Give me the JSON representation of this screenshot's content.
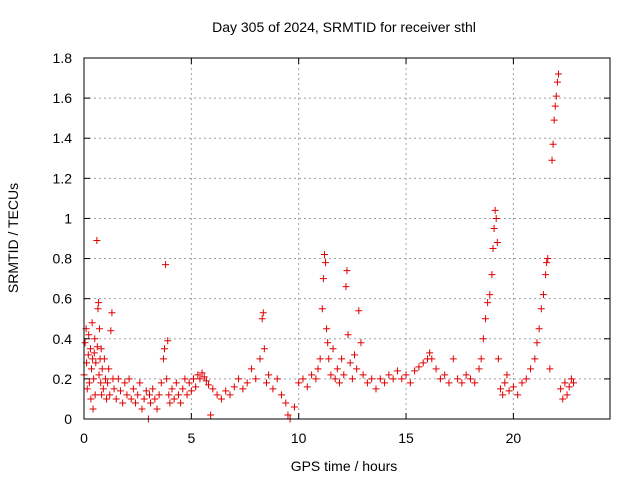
{
  "chart_data": {
    "type": "scatter",
    "title": "Day 305 of 2024, SRMTID for receiver sthl",
    "xlabel": "GPS time / hours",
    "ylabel": "SRMTID / TECUs",
    "xlim": [
      0,
      24.5
    ],
    "ylim": [
      0,
      1.8
    ],
    "x_ticks": [
      0,
      5,
      10,
      15,
      20
    ],
    "x_tick_labels": [
      "0",
      "5",
      "10",
      "15",
      "20"
    ],
    "y_ticks": [
      0,
      0.2,
      0.4,
      0.6,
      0.8,
      1.0,
      1.2,
      1.4,
      1.6,
      1.8
    ],
    "y_tick_labels": [
      "0",
      "0.2",
      "0.4",
      "0.6",
      "0.8",
      "1",
      "1.2",
      "1.4",
      "1.6",
      "1.8"
    ],
    "grid": true,
    "marker": "plus",
    "marker_color": "#e00000",
    "series": [
      {
        "name": "SRMTID",
        "points": [
          [
            0.0,
            0.22
          ],
          [
            0.05,
            0.38
          ],
          [
            0.1,
            0.45
          ],
          [
            0.12,
            0.28
          ],
          [
            0.15,
            0.15
          ],
          [
            0.2,
            0.32
          ],
          [
            0.22,
            0.42
          ],
          [
            0.25,
            0.18
          ],
          [
            0.3,
            0.35
          ],
          [
            0.32,
            0.1
          ],
          [
            0.35,
            0.25
          ],
          [
            0.38,
            0.48
          ],
          [
            0.4,
            0.3
          ],
          [
            0.42,
            0.05
          ],
          [
            0.45,
            0.2
          ],
          [
            0.48,
            0.33
          ],
          [
            0.5,
            0.4
          ],
          [
            0.52,
            0.12
          ],
          [
            0.55,
            0.28
          ],
          [
            0.6,
            0.89
          ],
          [
            0.62,
            0.36
          ],
          [
            0.65,
            0.55
          ],
          [
            0.68,
            0.58
          ],
          [
            0.7,
            0.22
          ],
          [
            0.72,
            0.45
          ],
          [
            0.75,
            0.3
          ],
          [
            0.78,
            0.18
          ],
          [
            0.8,
            0.35
          ],
          [
            0.82,
            0.12
          ],
          [
            0.85,
            0.25
          ],
          [
            0.9,
            0.15
          ],
          [
            0.95,
            0.3
          ],
          [
            1.0,
            0.2
          ],
          [
            1.05,
            0.1
          ],
          [
            1.1,
            0.18
          ],
          [
            1.15,
            0.25
          ],
          [
            1.2,
            0.12
          ],
          [
            1.25,
            0.44
          ],
          [
            1.3,
            0.53
          ],
          [
            1.35,
            0.2
          ],
          [
            1.4,
            0.15
          ],
          [
            1.5,
            0.1
          ],
          [
            1.6,
            0.2
          ],
          [
            1.7,
            0.14
          ],
          [
            1.8,
            0.08
          ],
          [
            1.9,
            0.18
          ],
          [
            2.0,
            0.12
          ],
          [
            2.1,
            0.2
          ],
          [
            2.2,
            0.1
          ],
          [
            2.3,
            0.15
          ],
          [
            2.4,
            0.08
          ],
          [
            2.5,
            0.12
          ],
          [
            2.6,
            0.18
          ],
          [
            2.7,
            0.05
          ],
          [
            2.8,
            0.1
          ],
          [
            2.9,
            0.14
          ],
          [
            3.0,
            0.0
          ],
          [
            3.05,
            0.12
          ],
          [
            3.1,
            0.08
          ],
          [
            3.2,
            0.15
          ],
          [
            3.3,
            0.1
          ],
          [
            3.4,
            0.05
          ],
          [
            3.5,
            0.12
          ],
          [
            3.6,
            0.18
          ],
          [
            3.7,
            0.3
          ],
          [
            3.75,
            0.35
          ],
          [
            3.8,
            0.77
          ],
          [
            3.85,
            0.2
          ],
          [
            3.9,
            0.39
          ],
          [
            3.95,
            0.12
          ],
          [
            4.0,
            0.08
          ],
          [
            4.1,
            0.15
          ],
          [
            4.2,
            0.1
          ],
          [
            4.3,
            0.18
          ],
          [
            4.4,
            0.12
          ],
          [
            4.5,
            0.08
          ],
          [
            4.6,
            0.15
          ],
          [
            4.7,
            0.2
          ],
          [
            4.8,
            0.12
          ],
          [
            4.9,
            0.18
          ],
          [
            5.0,
            0.14
          ],
          [
            5.1,
            0.2
          ],
          [
            5.2,
            0.16
          ],
          [
            5.3,
            0.22
          ],
          [
            5.4,
            0.2
          ],
          [
            5.5,
            0.23
          ],
          [
            5.6,
            0.21
          ],
          [
            5.7,
            0.19
          ],
          [
            5.8,
            0.17
          ],
          [
            5.9,
            0.02
          ],
          [
            6.0,
            0.15
          ],
          [
            6.2,
            0.12
          ],
          [
            6.4,
            0.1
          ],
          [
            6.6,
            0.14
          ],
          [
            6.8,
            0.12
          ],
          [
            7.0,
            0.16
          ],
          [
            7.2,
            0.2
          ],
          [
            7.4,
            0.15
          ],
          [
            7.6,
            0.18
          ],
          [
            7.8,
            0.25
          ],
          [
            8.0,
            0.2
          ],
          [
            8.2,
            0.3
          ],
          [
            8.3,
            0.5
          ],
          [
            8.35,
            0.53
          ],
          [
            8.4,
            0.35
          ],
          [
            8.5,
            0.18
          ],
          [
            8.6,
            0.22
          ],
          [
            8.8,
            0.15
          ],
          [
            9.0,
            0.2
          ],
          [
            9.2,
            0.12
          ],
          [
            9.4,
            0.08
          ],
          [
            9.5,
            0.02
          ],
          [
            9.6,
            0.0
          ],
          [
            9.8,
            0.06
          ],
          [
            10.0,
            0.18
          ],
          [
            10.2,
            0.2
          ],
          [
            10.4,
            0.16
          ],
          [
            10.6,
            0.22
          ],
          [
            10.8,
            0.2
          ],
          [
            10.9,
            0.25
          ],
          [
            11.0,
            0.3
          ],
          [
            11.1,
            0.55
          ],
          [
            11.15,
            0.7
          ],
          [
            11.2,
            0.82
          ],
          [
            11.25,
            0.78
          ],
          [
            11.3,
            0.45
          ],
          [
            11.35,
            0.38
          ],
          [
            11.4,
            0.3
          ],
          [
            11.5,
            0.22
          ],
          [
            11.6,
            0.35
          ],
          [
            11.7,
            0.2
          ],
          [
            11.8,
            0.25
          ],
          [
            11.9,
            0.18
          ],
          [
            12.0,
            0.3
          ],
          [
            12.1,
            0.22
          ],
          [
            12.2,
            0.66
          ],
          [
            12.25,
            0.74
          ],
          [
            12.3,
            0.42
          ],
          [
            12.4,
            0.28
          ],
          [
            12.5,
            0.2
          ],
          [
            12.6,
            0.32
          ],
          [
            12.7,
            0.25
          ],
          [
            12.8,
            0.54
          ],
          [
            12.9,
            0.38
          ],
          [
            13.0,
            0.22
          ],
          [
            13.2,
            0.18
          ],
          [
            13.4,
            0.2
          ],
          [
            13.6,
            0.15
          ],
          [
            13.8,
            0.2
          ],
          [
            14.0,
            0.18
          ],
          [
            14.2,
            0.22
          ],
          [
            14.4,
            0.2
          ],
          [
            14.6,
            0.24
          ],
          [
            14.8,
            0.2
          ],
          [
            15.0,
            0.22
          ],
          [
            15.2,
            0.18
          ],
          [
            15.4,
            0.24
          ],
          [
            15.6,
            0.26
          ],
          [
            15.8,
            0.28
          ],
          [
            16.0,
            0.3
          ],
          [
            16.1,
            0.33
          ],
          [
            16.2,
            0.3
          ],
          [
            16.4,
            0.25
          ],
          [
            16.6,
            0.2
          ],
          [
            16.8,
            0.22
          ],
          [
            17.0,
            0.18
          ],
          [
            17.2,
            0.3
          ],
          [
            17.4,
            0.2
          ],
          [
            17.6,
            0.18
          ],
          [
            17.8,
            0.22
          ],
          [
            18.0,
            0.2
          ],
          [
            18.2,
            0.18
          ],
          [
            18.4,
            0.25
          ],
          [
            18.5,
            0.3
          ],
          [
            18.6,
            0.4
          ],
          [
            18.7,
            0.5
          ],
          [
            18.8,
            0.58
          ],
          [
            18.9,
            0.62
          ],
          [
            19.0,
            0.72
          ],
          [
            19.05,
            0.85
          ],
          [
            19.1,
            0.95
          ],
          [
            19.15,
            1.04
          ],
          [
            19.2,
            1.0
          ],
          [
            19.25,
            0.88
          ],
          [
            19.3,
            0.3
          ],
          [
            19.4,
            0.15
          ],
          [
            19.5,
            0.12
          ],
          [
            19.6,
            0.18
          ],
          [
            19.7,
            0.22
          ],
          [
            19.8,
            0.14
          ],
          [
            20.0,
            0.16
          ],
          [
            20.2,
            0.12
          ],
          [
            20.4,
            0.18
          ],
          [
            20.6,
            0.2
          ],
          [
            20.8,
            0.25
          ],
          [
            21.0,
            0.3
          ],
          [
            21.1,
            0.38
          ],
          [
            21.2,
            0.45
          ],
          [
            21.3,
            0.55
          ],
          [
            21.4,
            0.62
          ],
          [
            21.5,
            0.72
          ],
          [
            21.55,
            0.78
          ],
          [
            21.6,
            0.8
          ],
          [
            21.7,
            0.25
          ],
          [
            21.8,
            1.29
          ],
          [
            21.85,
            1.37
          ],
          [
            21.9,
            1.49
          ],
          [
            21.95,
            1.56
          ],
          [
            22.0,
            1.61
          ],
          [
            22.05,
            1.68
          ],
          [
            22.1,
            1.72
          ],
          [
            22.2,
            0.15
          ],
          [
            22.3,
            0.1
          ],
          [
            22.4,
            0.18
          ],
          [
            22.5,
            0.12
          ],
          [
            22.6,
            0.16
          ],
          [
            22.7,
            0.2
          ],
          [
            22.8,
            0.18
          ]
        ]
      }
    ]
  }
}
